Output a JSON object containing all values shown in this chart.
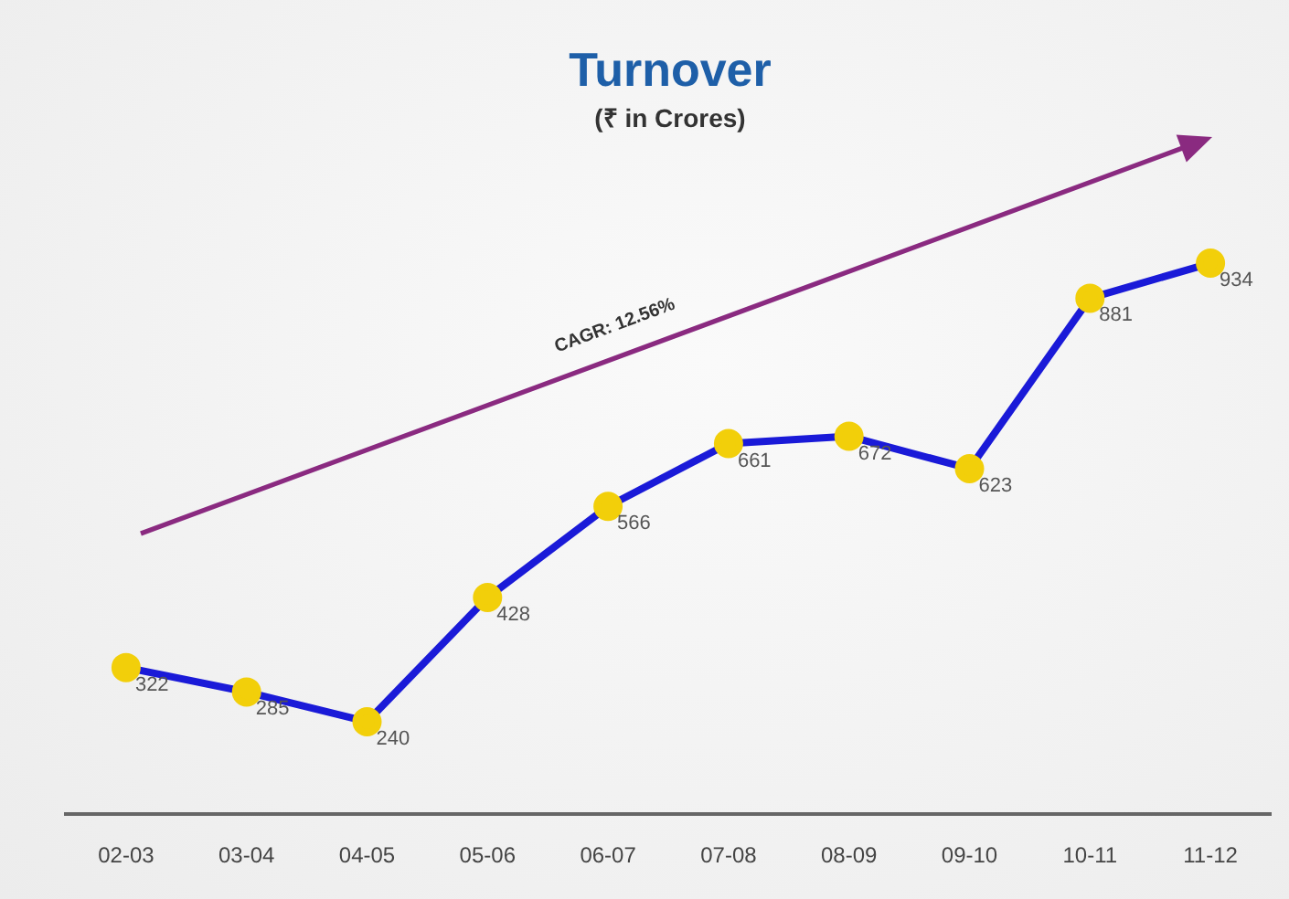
{
  "chart_data": {
    "type": "line",
    "title": "Turnover",
    "subtitle": "(₹ in Crores)",
    "categories": [
      "02-03",
      "03-04",
      "04-05",
      "05-06",
      "06-07",
      "07-08",
      "08-09",
      "09-10",
      "10-11",
      "11-12"
    ],
    "series": [
      {
        "color": "#1a1ad8",
        "colors": [
          "#f2cf0a",
          "#f2cf0a",
          "#f2cf0a",
          "#f2cf0a",
          "#f2cf0a",
          "#f2cf0a",
          "#f2cf0a",
          "#f2cf0a",
          "#f2cf0a",
          "#f2cf0a"
        ],
        "values": [
          322,
          285,
          240,
          428,
          566,
          661,
          672,
          623,
          881,
          934
        ]
      }
    ],
    "tick_labels": "x",
    "marker": "circle",
    "line_style": "solid",
    "data_labels": true,
    "annotations": [
      "CAGR: 12.56%"
    ]
  }
}
